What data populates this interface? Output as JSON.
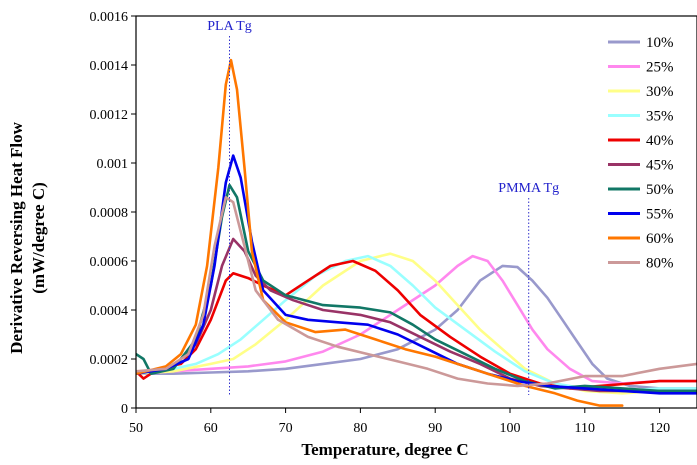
{
  "chart_data": {
    "type": "line",
    "title": "",
    "xlabel": "Temperature, degree C",
    "ylabel_line1": "Derivative Reversing Heat Flow",
    "ylabel_line2": "(mW/degree C)",
    "xlim": [
      50,
      125
    ],
    "ylim": [
      0,
      0.0016
    ],
    "x_ticks": [
      "50",
      "60",
      "70",
      "80",
      "90",
      "100",
      "110",
      "120"
    ],
    "x_tick_values": [
      50,
      60,
      70,
      80,
      90,
      100,
      110,
      120
    ],
    "y_ticks": [
      "0",
      "0.0002",
      "0.0004",
      "0.0006",
      "0.0008",
      "0.001",
      "0.0012",
      "0.0014",
      "0.0016"
    ],
    "y_tick_values": [
      0,
      0.0002,
      0.0004,
      0.0006,
      0.0008,
      0.001,
      0.0012,
      0.0014,
      0.0016
    ],
    "grid": false,
    "legend_position": "right",
    "annotations": [
      {
        "text": "PLA Tg",
        "x": 62.5
      },
      {
        "text": "PMMA Tg",
        "x": 102.5
      }
    ],
    "series": [
      {
        "name": "10%",
        "color": "#9999cc",
        "points": [
          [
            50,
            0.00014
          ],
          [
            55,
            0.00014
          ],
          [
            60,
            0.000145
          ],
          [
            65,
            0.00015
          ],
          [
            70,
            0.00016
          ],
          [
            75,
            0.00018
          ],
          [
            80,
            0.0002
          ],
          [
            85,
            0.00024
          ],
          [
            90,
            0.00032
          ],
          [
            93,
            0.0004
          ],
          [
            96,
            0.00052
          ],
          [
            99,
            0.00058
          ],
          [
            101,
            0.000575
          ],
          [
            103,
            0.00052
          ],
          [
            105,
            0.00045
          ],
          [
            107,
            0.00036
          ],
          [
            109,
            0.00027
          ],
          [
            111,
            0.00018
          ],
          [
            113,
            0.00012
          ],
          [
            116,
            9e-05
          ],
          [
            120,
            8e-05
          ],
          [
            125,
            8e-05
          ]
        ]
      },
      {
        "name": "25%",
        "color": "#ff88ee",
        "points": [
          [
            50,
            0.00014
          ],
          [
            55,
            0.00015
          ],
          [
            60,
            0.00016
          ],
          [
            65,
            0.00017
          ],
          [
            70,
            0.00019
          ],
          [
            75,
            0.00023
          ],
          [
            80,
            0.0003
          ],
          [
            85,
            0.0004
          ],
          [
            90,
            0.0005
          ],
          [
            93,
            0.00058
          ],
          [
            95,
            0.00062
          ],
          [
            97,
            0.0006
          ],
          [
            99,
            0.00052
          ],
          [
            101,
            0.00042
          ],
          [
            103,
            0.00032
          ],
          [
            105,
            0.00024
          ],
          [
            108,
            0.00016
          ],
          [
            111,
            0.00011
          ],
          [
            115,
            0.0001
          ],
          [
            120,
            0.00011
          ],
          [
            125,
            0.00011
          ]
        ]
      },
      {
        "name": "30%",
        "color": "#ffff88",
        "points": [
          [
            50,
            0.00014
          ],
          [
            55,
            0.00015
          ],
          [
            60,
            0.00018
          ],
          [
            63,
            0.0002
          ],
          [
            66,
            0.00026
          ],
          [
            70,
            0.00036
          ],
          [
            75,
            0.0005
          ],
          [
            80,
            0.0006
          ],
          [
            84,
            0.00063
          ],
          [
            87,
            0.0006
          ],
          [
            90,
            0.00052
          ],
          [
            93,
            0.00042
          ],
          [
            96,
            0.00032
          ],
          [
            99,
            0.00024
          ],
          [
            102,
            0.00016
          ],
          [
            106,
            0.0001
          ],
          [
            110,
            7e-05
          ],
          [
            115,
            6e-05
          ],
          [
            120,
            7e-05
          ],
          [
            125,
            8e-05
          ]
        ]
      },
      {
        "name": "35%",
        "color": "#99ffff",
        "points": [
          [
            50,
            0.00014
          ],
          [
            55,
            0.00016
          ],
          [
            58,
            0.00018
          ],
          [
            61,
            0.00022
          ],
          [
            64,
            0.00028
          ],
          [
            67,
            0.00036
          ],
          [
            70,
            0.00044
          ],
          [
            74,
            0.00054
          ],
          [
            78,
            0.0006
          ],
          [
            81,
            0.00062
          ],
          [
            84,
            0.00058
          ],
          [
            87,
            0.0005
          ],
          [
            90,
            0.00041
          ],
          [
            94,
            0.00032
          ],
          [
            98,
            0.00023
          ],
          [
            102,
            0.00015
          ],
          [
            106,
            0.0001
          ],
          [
            110,
            8e-05
          ],
          [
            115,
            7e-05
          ],
          [
            120,
            8e-05
          ],
          [
            125,
            8e-05
          ]
        ]
      },
      {
        "name": "40%",
        "color": "#ee0000",
        "points": [
          [
            50,
            0.00015
          ],
          [
            51,
            0.00012
          ],
          [
            53,
            0.00016
          ],
          [
            56,
            0.00018
          ],
          [
            58,
            0.00024
          ],
          [
            60,
            0.00036
          ],
          [
            62,
            0.00052
          ],
          [
            63,
            0.00055
          ],
          [
            65,
            0.00053
          ],
          [
            67,
            0.0005
          ],
          [
            70,
            0.00046
          ],
          [
            73,
            0.00052
          ],
          [
            76,
            0.00058
          ],
          [
            79,
            0.0006
          ],
          [
            82,
            0.00056
          ],
          [
            85,
            0.00048
          ],
          [
            88,
            0.00038
          ],
          [
            92,
            0.00029
          ],
          [
            96,
            0.00021
          ],
          [
            100,
            0.00014
          ],
          [
            104,
            0.0001
          ],
          [
            108,
            8e-05
          ],
          [
            112,
            9e-05
          ],
          [
            116,
            0.0001
          ],
          [
            120,
            0.00011
          ],
          [
            125,
            0.00011
          ]
        ]
      },
      {
        "name": "45%",
        "color": "#993366",
        "points": [
          [
            50,
            0.00014
          ],
          [
            55,
            0.00017
          ],
          [
            58,
            0.00026
          ],
          [
            60,
            0.0004
          ],
          [
            61.5,
            0.00058
          ],
          [
            63,
            0.00069
          ],
          [
            64.5,
            0.00064
          ],
          [
            66,
            0.00054
          ],
          [
            68,
            0.00048
          ],
          [
            71,
            0.00044
          ],
          [
            75,
            0.0004
          ],
          [
            80,
            0.00038
          ],
          [
            84,
            0.00035
          ],
          [
            88,
            0.00029
          ],
          [
            92,
            0.00023
          ],
          [
            96,
            0.00018
          ],
          [
            100,
            0.00012
          ],
          [
            104,
            9e-05
          ],
          [
            108,
            8e-05
          ],
          [
            112,
            7e-05
          ],
          [
            118,
            7e-05
          ],
          [
            125,
            7e-05
          ]
        ]
      },
      {
        "name": "50%",
        "color": "#117766",
        "points": [
          [
            50,
            0.00022
          ],
          [
            51,
            0.0002
          ],
          [
            52,
            0.00014
          ],
          [
            55,
            0.00016
          ],
          [
            58,
            0.00028
          ],
          [
            60,
            0.0005
          ],
          [
            61.5,
            0.00078
          ],
          [
            62.5,
            0.00091
          ],
          [
            63.5,
            0.00086
          ],
          [
            65,
            0.00064
          ],
          [
            67,
            0.00052
          ],
          [
            70,
            0.00046
          ],
          [
            75,
            0.00042
          ],
          [
            80,
            0.00041
          ],
          [
            84,
            0.00039
          ],
          [
            87,
            0.00034
          ],
          [
            90,
            0.00028
          ],
          [
            94,
            0.00022
          ],
          [
            98,
            0.00016
          ],
          [
            102,
            0.00011
          ],
          [
            106,
            8e-05
          ],
          [
            110,
            9e-05
          ],
          [
            115,
            8e-05
          ],
          [
            120,
            7e-05
          ],
          [
            125,
            7e-05
          ]
        ]
      },
      {
        "name": "55%",
        "color": "#0000ee",
        "points": [
          [
            50,
            0.00014
          ],
          [
            54,
            0.00016
          ],
          [
            57,
            0.0002
          ],
          [
            59,
            0.00034
          ],
          [
            60.5,
            0.00058
          ],
          [
            62,
            0.00092
          ],
          [
            63,
            0.00103
          ],
          [
            64,
            0.00094
          ],
          [
            65.5,
            0.00068
          ],
          [
            67,
            0.00048
          ],
          [
            70,
            0.00038
          ],
          [
            73,
            0.00036
          ],
          [
            77,
            0.00035
          ],
          [
            81,
            0.00034
          ],
          [
            85,
            0.0003
          ],
          [
            89,
            0.00024
          ],
          [
            93,
            0.00018
          ],
          [
            97,
            0.00014
          ],
          [
            101,
            0.00011
          ],
          [
            105,
            9e-05
          ],
          [
            110,
            8e-05
          ],
          [
            115,
            7e-05
          ],
          [
            120,
            6e-05
          ],
          [
            125,
            6e-05
          ]
        ]
      },
      {
        "name": "60%",
        "color": "#ff7700",
        "points": [
          [
            50,
            0.00014
          ],
          [
            54,
            0.00017
          ],
          [
            56,
            0.00022
          ],
          [
            58,
            0.00034
          ],
          [
            59.5,
            0.00058
          ],
          [
            61,
            0.00098
          ],
          [
            62,
            0.00132
          ],
          [
            62.7,
            0.00142
          ],
          [
            63.5,
            0.0013
          ],
          [
            64.5,
            0.00098
          ],
          [
            65.5,
            0.00064
          ],
          [
            67,
            0.00044
          ],
          [
            70,
            0.00035
          ],
          [
            74,
            0.00031
          ],
          [
            78,
            0.00032
          ],
          [
            82,
            0.00028
          ],
          [
            86,
            0.00024
          ],
          [
            90,
            0.00021
          ],
          [
            94,
            0.00017
          ],
          [
            98,
            0.00013
          ],
          [
            102,
            9e-05
          ],
          [
            106,
            6e-05
          ],
          [
            109,
            3e-05
          ],
          [
            112,
            1e-05
          ],
          [
            115,
            1e-05
          ]
        ]
      },
      {
        "name": "80%",
        "color": "#cc9999",
        "points": [
          [
            50,
            0.00015
          ],
          [
            54,
            0.00016
          ],
          [
            57,
            0.00022
          ],
          [
            59,
            0.00038
          ],
          [
            60.5,
            0.00066
          ],
          [
            62,
            0.00086
          ],
          [
            63,
            0.00084
          ],
          [
            64.5,
            0.00066
          ],
          [
            66,
            0.00048
          ],
          [
            69,
            0.00036
          ],
          [
            73,
            0.00029
          ],
          [
            77,
            0.00025
          ],
          [
            81,
            0.00022
          ],
          [
            85,
            0.00019
          ],
          [
            89,
            0.00016
          ],
          [
            93,
            0.00012
          ],
          [
            97,
            0.0001
          ],
          [
            101,
            9e-05
          ],
          [
            105,
            0.0001
          ],
          [
            110,
            0.00013
          ],
          [
            115,
            0.00013
          ],
          [
            120,
            0.00016
          ],
          [
            125,
            0.00018
          ]
        ]
      }
    ]
  }
}
